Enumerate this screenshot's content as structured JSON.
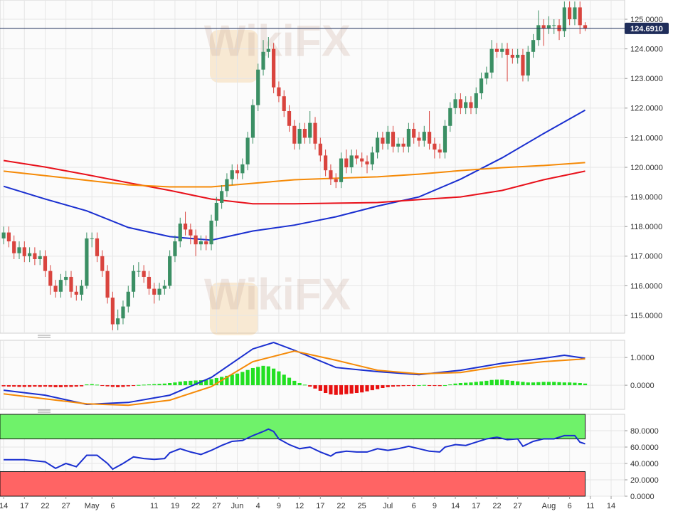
{
  "chart_data": [
    {
      "type": "candlestick",
      "watermark": "WikiFX",
      "up_color": "#3b8f64",
      "down_color": "#d9443e",
      "open": [
        117.6,
        117.8,
        117.5,
        117.1,
        117.3,
        117.0,
        117.1,
        116.9,
        117.0,
        116.5,
        116.0,
        115.8,
        116.2,
        116.3,
        115.8,
        115.7,
        116.0,
        117.6,
        117.6,
        117.0,
        116.5,
        115.6,
        114.7,
        114.9,
        115.3,
        115.8,
        116.5,
        116.5,
        116.3,
        115.9,
        115.7,
        115.9,
        116.0,
        117.0,
        117.5,
        118.1,
        117.9,
        117.7,
        117.4,
        117.5,
        117.4,
        118.2,
        118.8,
        119.2,
        119.6,
        119.9,
        119.8,
        120.1,
        121.0,
        122.1,
        123.3,
        123.9,
        124.0,
        122.7,
        122.4,
        121.9,
        121.4,
        120.8,
        121.3,
        121.0,
        121.5,
        120.8,
        120.4,
        119.9,
        119.6,
        119.5,
        120.3,
        120.0,
        120.4,
        120.3,
        120.2,
        120.1,
        120.5,
        121.0,
        120.8,
        121.2,
        120.7,
        120.8,
        120.7,
        121.3,
        121.0,
        120.9,
        121.2,
        120.8,
        120.6,
        120.5,
        121.4,
        122.0,
        122.3,
        122.0,
        122.2,
        122.0,
        122.5,
        123.0,
        123.2,
        124.0,
        123.9,
        124.0,
        123.8,
        123.7,
        123.8,
        123.1,
        123.9,
        124.3,
        124.8,
        124.7,
        124.8,
        124.8,
        124.6,
        125.4,
        125.0,
        125.4,
        124.8
      ],
      "high": [
        118.0,
        118.0,
        117.7,
        117.5,
        117.5,
        117.3,
        117.3,
        117.2,
        117.2,
        116.7,
        116.2,
        116.4,
        116.5,
        116.5,
        116.0,
        116.2,
        117.8,
        117.8,
        117.8,
        117.2,
        116.7,
        115.8,
        115.2,
        115.5,
        116.0,
        116.7,
        116.8,
        116.7,
        116.5,
        116.1,
        116.1,
        116.2,
        117.2,
        117.7,
        118.3,
        118.5,
        118.1,
        117.9,
        117.7,
        117.7,
        118.4,
        119.0,
        119.4,
        119.8,
        120.1,
        120.1,
        120.3,
        121.2,
        122.3,
        123.5,
        124.3,
        124.4,
        124.2,
        122.9,
        122.6,
        122.1,
        121.6,
        121.5,
        121.5,
        121.9,
        121.7,
        121.0,
        120.6,
        120.1,
        119.8,
        120.5,
        120.6,
        120.6,
        120.6,
        120.5,
        120.4,
        120.7,
        121.2,
        121.2,
        121.4,
        121.4,
        121.0,
        121.0,
        121.5,
        121.5,
        121.2,
        121.4,
        121.9,
        121.0,
        120.8,
        121.6,
        122.2,
        122.5,
        122.5,
        122.4,
        122.4,
        122.7,
        123.2,
        123.4,
        124.3,
        124.2,
        124.2,
        124.2,
        124.0,
        124.0,
        124.0,
        124.1,
        124.5,
        125.3,
        125.0,
        125.1,
        125.0,
        125.0,
        125.6,
        125.6,
        125.6,
        125.6,
        124.9
      ],
      "low": [
        117.4,
        117.3,
        116.9,
        116.9,
        116.8,
        116.8,
        116.7,
        116.7,
        116.3,
        115.7,
        115.6,
        115.6,
        116.0,
        115.6,
        115.5,
        115.5,
        115.9,
        117.3,
        116.8,
        116.3,
        115.4,
        114.5,
        114.5,
        114.7,
        115.1,
        115.6,
        116.3,
        116.1,
        115.7,
        115.4,
        115.5,
        115.7,
        115.9,
        116.8,
        117.3,
        117.7,
        117.4,
        117.0,
        117.2,
        117.2,
        117.2,
        118.0,
        118.6,
        119.0,
        119.4,
        119.6,
        119.6,
        119.9,
        120.8,
        121.9,
        123.1,
        123.7,
        122.5,
        122.2,
        121.7,
        121.2,
        120.6,
        120.6,
        120.8,
        120.8,
        120.6,
        120.2,
        119.7,
        119.4,
        119.3,
        119.3,
        119.8,
        119.8,
        120.1,
        120.0,
        119.8,
        119.9,
        120.3,
        120.6,
        120.6,
        120.5,
        120.5,
        120.5,
        120.5,
        120.8,
        120.7,
        120.7,
        120.6,
        120.3,
        120.3,
        120.3,
        121.2,
        121.8,
        121.8,
        121.8,
        121.8,
        121.8,
        122.3,
        122.8,
        123.0,
        123.7,
        123.7,
        122.9,
        123.5,
        123.5,
        122.9,
        122.9,
        123.7,
        124.1,
        124.1,
        124.5,
        124.5,
        124.3,
        124.4,
        124.8,
        124.8,
        124.5,
        124.6
      ],
      "close": [
        117.8,
        117.5,
        117.1,
        117.3,
        117.0,
        117.1,
        116.9,
        117.0,
        116.5,
        116.0,
        115.8,
        116.2,
        116.3,
        115.8,
        115.7,
        116.0,
        117.6,
        117.6,
        117.0,
        116.5,
        115.6,
        114.7,
        114.9,
        115.3,
        115.8,
        116.5,
        116.5,
        116.3,
        115.9,
        115.7,
        115.9,
        116.0,
        117.0,
        117.5,
        118.1,
        117.9,
        117.7,
        117.4,
        117.5,
        117.4,
        118.2,
        118.8,
        119.2,
        119.6,
        119.9,
        119.8,
        120.1,
        121.0,
        122.1,
        123.3,
        123.9,
        124.0,
        122.7,
        122.4,
        121.9,
        121.4,
        120.8,
        121.3,
        121.0,
        121.5,
        120.8,
        120.4,
        119.9,
        119.6,
        119.5,
        120.3,
        120.0,
        120.4,
        120.3,
        120.2,
        120.1,
        120.5,
        121.0,
        120.8,
        121.2,
        120.7,
        120.8,
        120.7,
        121.3,
        121.0,
        120.9,
        121.2,
        120.8,
        120.6,
        120.5,
        121.4,
        122.0,
        122.3,
        122.0,
        122.2,
        122.0,
        122.5,
        123.0,
        123.2,
        124.0,
        123.9,
        124.0,
        123.8,
        123.7,
        123.8,
        123.1,
        123.9,
        124.3,
        124.8,
        124.7,
        124.8,
        124.8,
        124.6,
        125.4,
        125.0,
        125.4,
        124.8,
        124.69
      ],
      "series": [
        {
          "color": "#1a2fd0",
          "x": [
            0,
            8,
            16,
            24,
            32,
            40,
            48,
            56,
            64,
            72,
            80,
            88,
            96,
            104,
            112
          ],
          "values": [
            119.36,
            118.93,
            118.53,
            117.97,
            117.66,
            117.54,
            117.85,
            118.05,
            118.33,
            118.69,
            119.0,
            119.6,
            120.32,
            121.14,
            121.93
          ]
        },
        {
          "color": "#e8101a",
          "x": [
            0,
            8,
            16,
            24,
            32,
            40,
            48,
            56,
            64,
            72,
            80,
            88,
            96,
            104,
            112
          ],
          "values": [
            120.23,
            120.01,
            119.75,
            119.48,
            119.22,
            118.93,
            118.77,
            118.77,
            118.79,
            118.81,
            118.91,
            119.0,
            119.22,
            119.58,
            119.87
          ]
        },
        {
          "color": "#f58a07",
          "x": [
            0,
            8,
            16,
            24,
            32,
            40,
            48,
            56,
            64,
            72,
            80,
            88,
            96,
            104,
            112
          ],
          "values": [
            119.87,
            119.72,
            119.56,
            119.41,
            119.34,
            119.34,
            119.46,
            119.58,
            119.63,
            119.68,
            119.77,
            119.89,
            119.99,
            120.06,
            120.16
          ]
        }
      ],
      "last": {
        "value": 124.691,
        "label": "124.6910"
      },
      "last_color": "#1f2d5a",
      "xlim": [
        -0.7,
        119.6
      ],
      "ylim": [
        114.4,
        125.65
      ],
      "yticks": [
        {
          "value": 115,
          "label": "115.0000"
        },
        {
          "value": 116,
          "label": "116.0000"
        },
        {
          "value": 117,
          "label": "117.0000"
        },
        {
          "value": 118,
          "label": "118.0000"
        },
        {
          "value": 119,
          "label": "119.0000"
        },
        {
          "value": 120,
          "label": "120.0000"
        },
        {
          "value": 121,
          "label": "121.0000"
        },
        {
          "value": 122,
          "label": "122.0000"
        },
        {
          "value": 123,
          "label": "123.0000"
        },
        {
          "value": 124,
          "label": "124.0000"
        },
        {
          "value": 125,
          "label": "125.0000"
        }
      ],
      "grid": true
    },
    {
      "type": "macd",
      "up_color": "#22e022",
      "down_color": "#e81010",
      "values": [
        -0.04,
        -0.05,
        -0.05,
        -0.06,
        -0.06,
        -0.06,
        -0.05,
        -0.06,
        -0.05,
        -0.06,
        -0.07,
        -0.07,
        -0.06,
        -0.06,
        -0.05,
        -0.04,
        0.03,
        0.04,
        0.02,
        -0.01,
        -0.04,
        -0.06,
        -0.07,
        -0.06,
        -0.04,
        -0.02,
        0.01,
        0.02,
        0.03,
        0.04,
        0.05,
        0.06,
        0.08,
        0.1,
        0.13,
        0.15,
        0.16,
        0.17,
        0.18,
        0.19,
        0.22,
        0.26,
        0.3,
        0.34,
        0.38,
        0.42,
        0.48,
        0.55,
        0.62,
        0.66,
        0.7,
        0.68,
        0.6,
        0.5,
        0.38,
        0.27,
        0.16,
        0.08,
        0.02,
        -0.05,
        -0.12,
        -0.2,
        -0.28,
        -0.33,
        -0.35,
        -0.34,
        -0.32,
        -0.3,
        -0.28,
        -0.26,
        -0.22,
        -0.18,
        -0.14,
        -0.1,
        -0.07,
        -0.05,
        -0.04,
        -0.03,
        -0.02,
        -0.01,
        0.0,
        0.01,
        -0.01,
        -0.02,
        -0.03,
        0.0,
        0.03,
        0.06,
        0.08,
        0.09,
        0.1,
        0.12,
        0.14,
        0.16,
        0.19,
        0.2,
        0.2,
        0.18,
        0.16,
        0.14,
        0.12,
        0.1,
        0.1,
        0.11,
        0.12,
        0.12,
        0.12,
        0.11,
        0.1,
        0.1,
        0.09,
        0.08,
        0.06
      ],
      "series": [
        {
          "color": "#1a2fd0",
          "x": [
            0,
            8,
            16,
            24,
            32,
            40,
            48,
            52,
            56,
            64,
            72,
            80,
            88,
            96,
            104,
            108,
            112
          ],
          "values": [
            -0.18,
            -0.36,
            -0.69,
            -0.62,
            -0.36,
            0.28,
            1.31,
            1.54,
            1.26,
            0.64,
            0.49,
            0.38,
            0.54,
            0.79,
            0.97,
            1.08,
            0.97
          ]
        },
        {
          "color": "#f58a07",
          "x": [
            0,
            8,
            16,
            24,
            32,
            40,
            48,
            56,
            64,
            72,
            80,
            88,
            96,
            104,
            112
          ],
          "values": [
            -0.31,
            -0.49,
            -0.67,
            -0.72,
            -0.54,
            -0.05,
            0.85,
            1.23,
            0.9,
            0.54,
            0.41,
            0.46,
            0.69,
            0.85,
            0.95
          ]
        }
      ],
      "xlim": [
        -0.7,
        119.6
      ],
      "ylim": [
        -0.87,
        1.62
      ],
      "yticks": [
        {
          "value": 0,
          "label": "0.0000"
        },
        {
          "value": 1,
          "label": "1.0000"
        }
      ],
      "grid": true
    },
    {
      "type": "rsi",
      "zones": [
        {
          "from": 70,
          "to": 100,
          "color": "#6ff26a"
        },
        {
          "from": 0,
          "to": 30,
          "color": "#ff6464"
        }
      ],
      "series": [
        {
          "color": "#1a2fd0",
          "x": [
            0,
            4,
            8,
            10,
            12,
            14,
            16,
            18,
            20,
            21,
            23,
            25,
            27,
            29,
            31,
            32,
            34,
            36,
            38,
            40,
            42,
            44,
            46,
            48,
            50,
            51,
            52,
            53,
            55,
            57,
            59,
            61,
            63,
            64,
            66,
            68,
            70,
            72,
            74,
            76,
            78,
            80,
            82,
            84,
            85,
            87,
            89,
            91,
            93,
            95,
            97,
            99,
            100,
            102,
            104,
            106,
            108,
            110,
            111,
            112
          ],
          "values": [
            44.6,
            44.6,
            42,
            34,
            40,
            36,
            50,
            50,
            40,
            33,
            40,
            48,
            46,
            45,
            46,
            53,
            58,
            54,
            51,
            56,
            62,
            67,
            68,
            74,
            79,
            82,
            79,
            70,
            63,
            58,
            60,
            54,
            49,
            53,
            55,
            54,
            54,
            58,
            56,
            58,
            61,
            58,
            55,
            54,
            60,
            63,
            62,
            66,
            70,
            72,
            69,
            70,
            61,
            67,
            70,
            70,
            74,
            74,
            66,
            64
          ]
        }
      ],
      "xlim": [
        -0.7,
        119.6
      ],
      "ylim": [
        0,
        100
      ],
      "yticks": [
        {
          "value": 0,
          "label": "0.0000"
        },
        {
          "value": 20,
          "label": "20.0000"
        },
        {
          "value": 40,
          "label": "40.0000"
        },
        {
          "value": 60,
          "label": "60.0000"
        },
        {
          "value": 80,
          "label": "80.0000"
        }
      ],
      "xticks": [
        {
          "value": 0,
          "label": "14"
        },
        {
          "value": 4,
          "label": "17"
        },
        {
          "value": 8,
          "label": "22"
        },
        {
          "value": 12,
          "label": "27"
        },
        {
          "value": 17,
          "label": "May"
        },
        {
          "value": 21,
          "label": "6"
        },
        {
          "value": 29,
          "label": "11"
        },
        {
          "value": 33,
          "label": "19"
        },
        {
          "value": 37,
          "label": "22"
        },
        {
          "value": 41,
          "label": "27"
        },
        {
          "value": 45,
          "label": "Jun"
        },
        {
          "value": 49,
          "label": "4"
        },
        {
          "value": 53,
          "label": "9"
        },
        {
          "value": 57,
          "label": "12"
        },
        {
          "value": 61,
          "label": "17"
        },
        {
          "value": 65,
          "label": "22"
        },
        {
          "value": 69,
          "label": "25"
        },
        {
          "value": 74,
          "label": "Jul"
        },
        {
          "value": 79,
          "label": "6"
        },
        {
          "value": 83,
          "label": "9"
        },
        {
          "value": 87,
          "label": "14"
        },
        {
          "value": 91,
          "label": "17"
        },
        {
          "value": 95,
          "label": "22"
        },
        {
          "value": 99,
          "label": "27"
        },
        {
          "value": 105,
          "label": "Aug"
        },
        {
          "value": 109,
          "label": "6"
        },
        {
          "value": 113,
          "label": "11"
        },
        {
          "value": 117,
          "label": "14"
        }
      ],
      "grid": true
    }
  ]
}
